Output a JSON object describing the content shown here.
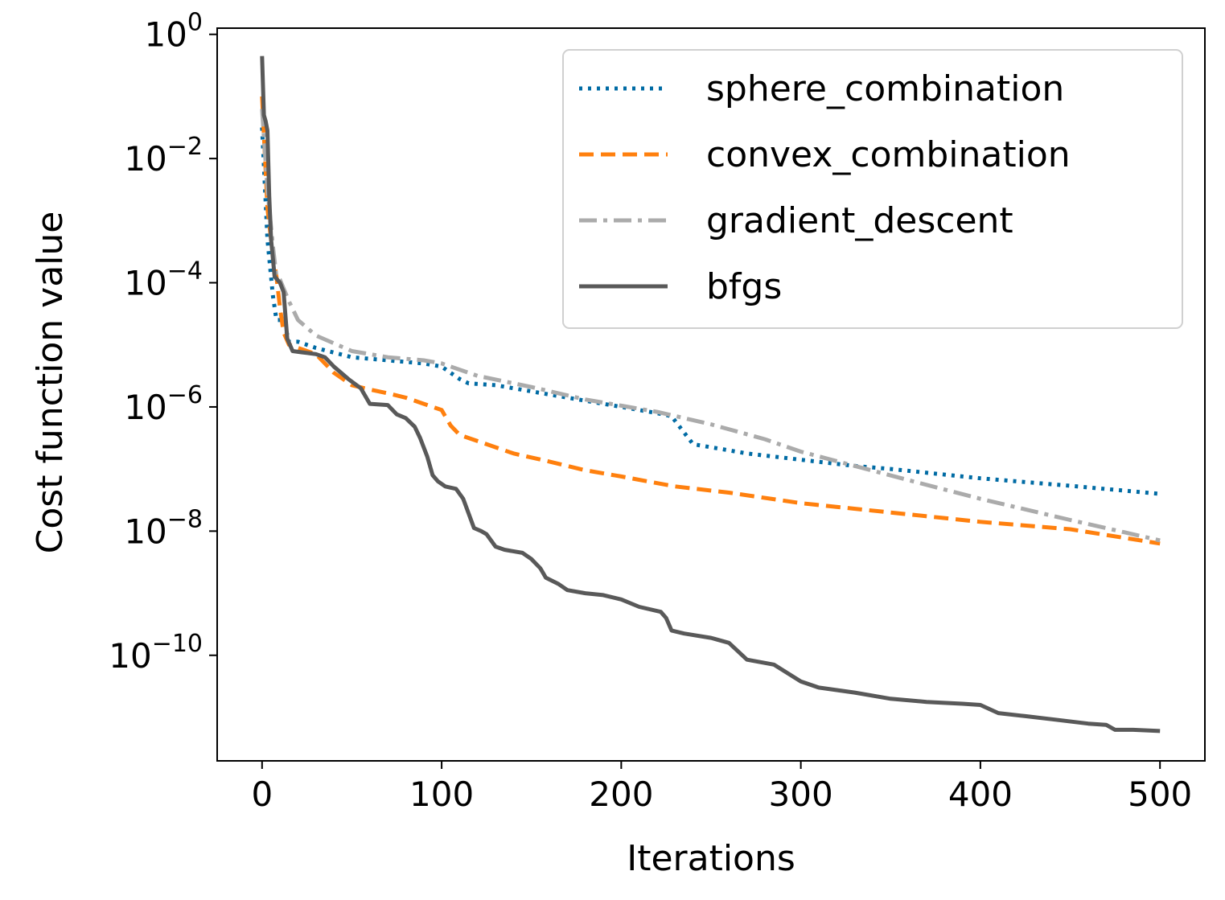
{
  "chart_data": {
    "type": "line",
    "xlabel": "Iterations",
    "ylabel": "Cost function value",
    "xlim": [
      -25,
      525
    ],
    "ylim": [
      -11.7,
      0.1
    ],
    "yscale": "log",
    "xticks": [
      {
        "value": 0,
        "label": "0"
      },
      {
        "value": 100,
        "label": "100"
      },
      {
        "value": 200,
        "label": "200"
      },
      {
        "value": 300,
        "label": "300"
      },
      {
        "value": 400,
        "label": "400"
      },
      {
        "value": 500,
        "label": "500"
      }
    ],
    "yticks": [
      {
        "exp": 0,
        "base": "10",
        "sup": "0"
      },
      {
        "exp": -2,
        "base": "10",
        "sup": "−2"
      },
      {
        "exp": -4,
        "base": "10",
        "sup": "−4"
      },
      {
        "exp": -6,
        "base": "10",
        "sup": "−6"
      },
      {
        "exp": -8,
        "base": "10",
        "sup": "−8"
      },
      {
        "exp": -10,
        "base": "10",
        "sup": "−10"
      }
    ],
    "grid": false,
    "legend_position": "top-right",
    "series": [
      {
        "name": "sphere_combination",
        "color": "#006ba4",
        "dash": "dotted",
        "points": [
          [
            0,
            -1.5
          ],
          [
            3,
            -3.3
          ],
          [
            6,
            -4.2
          ],
          [
            8,
            -4.6
          ],
          [
            12,
            -4.6
          ],
          [
            15,
            -4.95
          ],
          [
            20,
            -4.95
          ],
          [
            30,
            -5.05
          ],
          [
            50,
            -5.2
          ],
          [
            70,
            -5.25
          ],
          [
            90,
            -5.3
          ],
          [
            100,
            -5.35
          ],
          [
            110,
            -5.55
          ],
          [
            115,
            -5.62
          ],
          [
            130,
            -5.65
          ],
          [
            150,
            -5.75
          ],
          [
            170,
            -5.85
          ],
          [
            200,
            -6.0
          ],
          [
            220,
            -6.1
          ],
          [
            228,
            -6.15
          ],
          [
            232,
            -6.3
          ],
          [
            240,
            -6.6
          ],
          [
            250,
            -6.65
          ],
          [
            270,
            -6.75
          ],
          [
            300,
            -6.85
          ],
          [
            330,
            -6.95
          ],
          [
            350,
            -7.0
          ],
          [
            400,
            -7.15
          ],
          [
            450,
            -7.27
          ],
          [
            500,
            -7.4
          ]
        ]
      },
      {
        "name": "convex_combination",
        "color": "#ff800e",
        "dash": "dashed",
        "points": [
          [
            0,
            -1.0
          ],
          [
            3,
            -2.8
          ],
          [
            5,
            -3.3
          ],
          [
            8,
            -3.9
          ],
          [
            10,
            -4.4
          ],
          [
            12,
            -4.8
          ],
          [
            15,
            -5.0
          ],
          [
            20,
            -5.05
          ],
          [
            30,
            -5.15
          ],
          [
            40,
            -5.45
          ],
          [
            50,
            -5.65
          ],
          [
            60,
            -5.72
          ],
          [
            70,
            -5.78
          ],
          [
            80,
            -5.85
          ],
          [
            90,
            -5.95
          ],
          [
            100,
            -6.05
          ],
          [
            105,
            -6.3
          ],
          [
            110,
            -6.45
          ],
          [
            120,
            -6.55
          ],
          [
            140,
            -6.75
          ],
          [
            160,
            -6.88
          ],
          [
            180,
            -7.02
          ],
          [
            200,
            -7.12
          ],
          [
            230,
            -7.28
          ],
          [
            260,
            -7.38
          ],
          [
            300,
            -7.55
          ],
          [
            350,
            -7.7
          ],
          [
            400,
            -7.85
          ],
          [
            450,
            -7.97
          ],
          [
            500,
            -8.2
          ]
        ]
      },
      {
        "name": "gradient_descent",
        "color": "#ababab",
        "dash": "dashdot",
        "points": [
          [
            0,
            -1.2
          ],
          [
            3,
            -2.5
          ],
          [
            6,
            -3.4
          ],
          [
            8,
            -3.9
          ],
          [
            10,
            -3.95
          ],
          [
            15,
            -4.3
          ],
          [
            20,
            -4.6
          ],
          [
            30,
            -4.85
          ],
          [
            50,
            -5.1
          ],
          [
            70,
            -5.2
          ],
          [
            90,
            -5.25
          ],
          [
            100,
            -5.3
          ],
          [
            120,
            -5.5
          ],
          [
            150,
            -5.68
          ],
          [
            180,
            -5.88
          ],
          [
            200,
            -5.98
          ],
          [
            220,
            -6.08
          ],
          [
            250,
            -6.28
          ],
          [
            280,
            -6.52
          ],
          [
            300,
            -6.72
          ],
          [
            330,
            -6.95
          ],
          [
            360,
            -7.18
          ],
          [
            400,
            -7.48
          ],
          [
            450,
            -7.82
          ],
          [
            500,
            -8.15
          ]
        ]
      },
      {
        "name": "bfgs",
        "color": "#595959",
        "dash": "solid",
        "points": [
          [
            0,
            -0.35
          ],
          [
            1,
            -1.3
          ],
          [
            2,
            -1.4
          ],
          [
            3,
            -1.55
          ],
          [
            4,
            -2.6
          ],
          [
            5,
            -3.3
          ],
          [
            7,
            -3.9
          ],
          [
            10,
            -4.0
          ],
          [
            12,
            -4.15
          ],
          [
            14,
            -4.9
          ],
          [
            17,
            -5.1
          ],
          [
            22,
            -5.12
          ],
          [
            30,
            -5.15
          ],
          [
            35,
            -5.2
          ],
          [
            40,
            -5.35
          ],
          [
            48,
            -5.55
          ],
          [
            55,
            -5.7
          ],
          [
            60,
            -5.95
          ],
          [
            70,
            -5.97
          ],
          [
            75,
            -6.12
          ],
          [
            80,
            -6.18
          ],
          [
            85,
            -6.32
          ],
          [
            88,
            -6.5
          ],
          [
            92,
            -6.8
          ],
          [
            95,
            -7.1
          ],
          [
            98,
            -7.2
          ],
          [
            102,
            -7.28
          ],
          [
            108,
            -7.32
          ],
          [
            112,
            -7.48
          ],
          [
            118,
            -7.95
          ],
          [
            122,
            -8.0
          ],
          [
            125,
            -8.05
          ],
          [
            130,
            -8.25
          ],
          [
            135,
            -8.3
          ],
          [
            145,
            -8.35
          ],
          [
            150,
            -8.45
          ],
          [
            155,
            -8.6
          ],
          [
            158,
            -8.75
          ],
          [
            165,
            -8.85
          ],
          [
            170,
            -8.95
          ],
          [
            180,
            -9.0
          ],
          [
            190,
            -9.03
          ],
          [
            200,
            -9.1
          ],
          [
            210,
            -9.22
          ],
          [
            222,
            -9.3
          ],
          [
            225,
            -9.4
          ],
          [
            228,
            -9.6
          ],
          [
            235,
            -9.65
          ],
          [
            250,
            -9.72
          ],
          [
            260,
            -9.8
          ],
          [
            270,
            -10.07
          ],
          [
            285,
            -10.15
          ],
          [
            300,
            -10.42
          ],
          [
            310,
            -10.52
          ],
          [
            330,
            -10.6
          ],
          [
            350,
            -10.7
          ],
          [
            370,
            -10.75
          ],
          [
            390,
            -10.78
          ],
          [
            400,
            -10.8
          ],
          [
            410,
            -10.93
          ],
          [
            425,
            -10.98
          ],
          [
            440,
            -11.03
          ],
          [
            460,
            -11.1
          ],
          [
            470,
            -11.12
          ],
          [
            475,
            -11.2
          ],
          [
            485,
            -11.2
          ],
          [
            500,
            -11.22
          ]
        ]
      }
    ]
  }
}
